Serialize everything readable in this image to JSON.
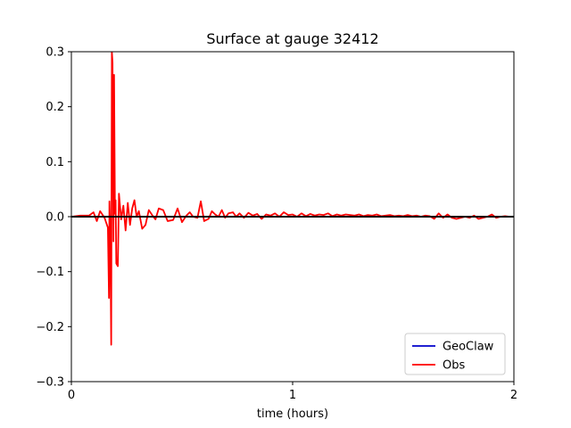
{
  "chart_data": {
    "type": "line",
    "title": "Surface at gauge 32412",
    "xlabel": "time (hours)",
    "ylabel": "",
    "xlim": [
      0,
      2
    ],
    "ylim": [
      -0.3,
      0.3
    ],
    "xticks": [
      0,
      1,
      2
    ],
    "xtick_labels": [
      "0",
      "1",
      "2"
    ],
    "yticks": [
      -0.3,
      -0.2,
      -0.1,
      0.0,
      0.1,
      0.2,
      0.3
    ],
    "ytick_labels": [
      "−0.3",
      "−0.2",
      "−0.1",
      "0.0",
      "0.1",
      "0.2",
      "0.3"
    ],
    "grid": false,
    "legend_position": "lower-right",
    "hline": {
      "y": 0,
      "color": "#000000"
    },
    "series": [
      {
        "name": "GeoClaw",
        "color": "#0000cc",
        "x": [
          0,
          2
        ],
        "y": [
          0.0,
          0.0
        ]
      },
      {
        "name": "Obs",
        "color": "#ff0000",
        "x": [
          0.0,
          0.04,
          0.08,
          0.1,
          0.115,
          0.13,
          0.15,
          0.165,
          0.17,
          0.172,
          0.176,
          0.18,
          0.183,
          0.186,
          0.19,
          0.193,
          0.197,
          0.2,
          0.203,
          0.207,
          0.21,
          0.215,
          0.225,
          0.235,
          0.245,
          0.255,
          0.265,
          0.275,
          0.285,
          0.295,
          0.305,
          0.32,
          0.335,
          0.35,
          0.365,
          0.38,
          0.395,
          0.415,
          0.435,
          0.46,
          0.48,
          0.5,
          0.52,
          0.535,
          0.55,
          0.57,
          0.585,
          0.6,
          0.62,
          0.635,
          0.65,
          0.665,
          0.68,
          0.695,
          0.71,
          0.73,
          0.745,
          0.76,
          0.78,
          0.8,
          0.82,
          0.84,
          0.86,
          0.88,
          0.9,
          0.92,
          0.94,
          0.96,
          0.98,
          1.0,
          1.02,
          1.04,
          1.06,
          1.08,
          1.1,
          1.12,
          1.14,
          1.16,
          1.18,
          1.2,
          1.22,
          1.24,
          1.26,
          1.28,
          1.3,
          1.32,
          1.34,
          1.36,
          1.38,
          1.4,
          1.42,
          1.44,
          1.46,
          1.48,
          1.5,
          1.52,
          1.54,
          1.56,
          1.58,
          1.6,
          1.62,
          1.64,
          1.66,
          1.68,
          1.7,
          1.72,
          1.74,
          1.76,
          1.78,
          1.8,
          1.82,
          1.84,
          1.86,
          1.88,
          1.9,
          1.92,
          1.94,
          1.96,
          1.98,
          2.0
        ],
        "y": [
          0.0,
          0.002,
          0.002,
          0.008,
          -0.008,
          0.01,
          -0.002,
          -0.02,
          -0.148,
          0.028,
          -0.04,
          -0.233,
          0.3,
          0.28,
          -0.045,
          0.258,
          0.005,
          0.03,
          -0.085,
          -0.088,
          -0.09,
          0.042,
          -0.005,
          0.02,
          -0.025,
          0.025,
          -0.015,
          0.015,
          0.03,
          0.0,
          0.01,
          -0.022,
          -0.015,
          0.012,
          0.003,
          -0.005,
          0.015,
          0.012,
          -0.008,
          -0.006,
          0.015,
          -0.01,
          0.002,
          0.008,
          0.0,
          -0.002,
          0.028,
          -0.008,
          -0.004,
          0.01,
          0.004,
          0.0,
          0.012,
          -0.002,
          0.006,
          0.008,
          0.0,
          0.006,
          -0.002,
          0.007,
          0.002,
          0.005,
          -0.004,
          0.004,
          0.002,
          0.006,
          0.0,
          0.008,
          0.003,
          0.004,
          0.0,
          0.006,
          0.001,
          0.005,
          0.002,
          0.004,
          0.003,
          0.006,
          0.001,
          0.004,
          0.002,
          0.004,
          0.003,
          0.002,
          0.004,
          0.001,
          0.003,
          0.002,
          0.004,
          0.001,
          0.002,
          0.003,
          0.001,
          0.002,
          0.001,
          0.003,
          0.001,
          0.002,
          0.0,
          0.002,
          0.001,
          -0.004,
          0.006,
          -0.002,
          0.004,
          -0.002,
          -0.004,
          -0.002,
          0.0,
          -0.002,
          0.002,
          -0.004,
          -0.002,
          0.0,
          0.004,
          -0.002,
          0.0,
          0.001,
          0.0,
          0.0
        ]
      }
    ]
  }
}
